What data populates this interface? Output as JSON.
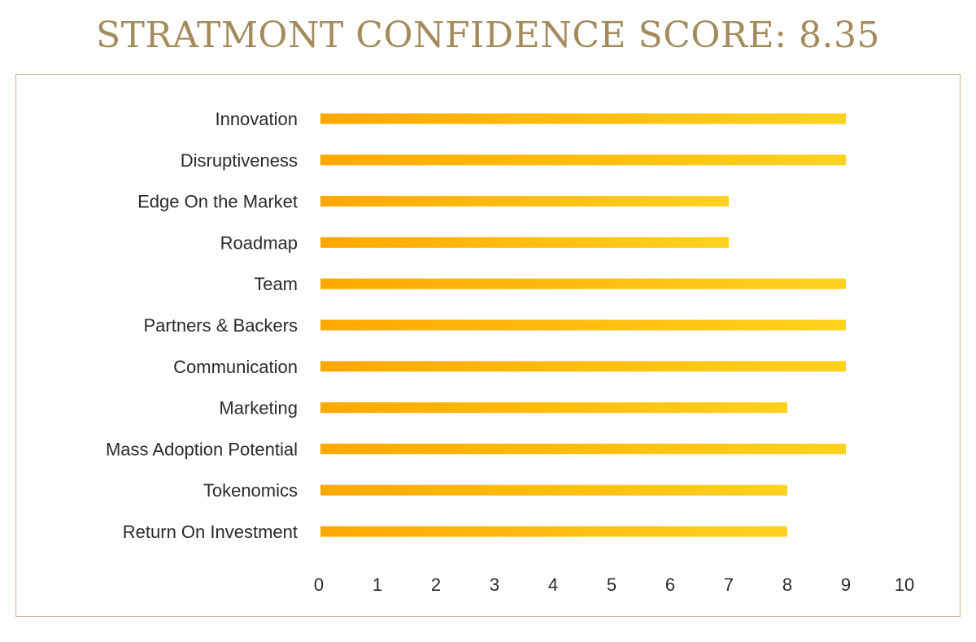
{
  "chart_data": {
    "type": "bar",
    "orientation": "horizontal",
    "title": "STRATMONT CONFIDENCE SCORE: 8.35",
    "categories": [
      "Innovation",
      "Disruptiveness",
      "Edge On the Market",
      "Roadmap",
      "Team",
      "Partners & Backers",
      "Communication",
      "Marketing",
      "Mass Adoption Potential",
      "Tokenomics",
      "Return On Investment"
    ],
    "values": [
      9,
      9,
      7,
      7,
      9,
      9,
      9,
      8,
      9,
      8,
      8
    ],
    "xlim": [
      0,
      10
    ],
    "xticks": [
      "0",
      "1",
      "2",
      "3",
      "4",
      "5",
      "6",
      "7",
      "8",
      "9",
      "10"
    ],
    "grid": false,
    "colors": {
      "bar_start": "#ffa800",
      "bar_end": "#ffd21f",
      "title": "#a48b5c",
      "frame": "#c9b48e"
    }
  }
}
